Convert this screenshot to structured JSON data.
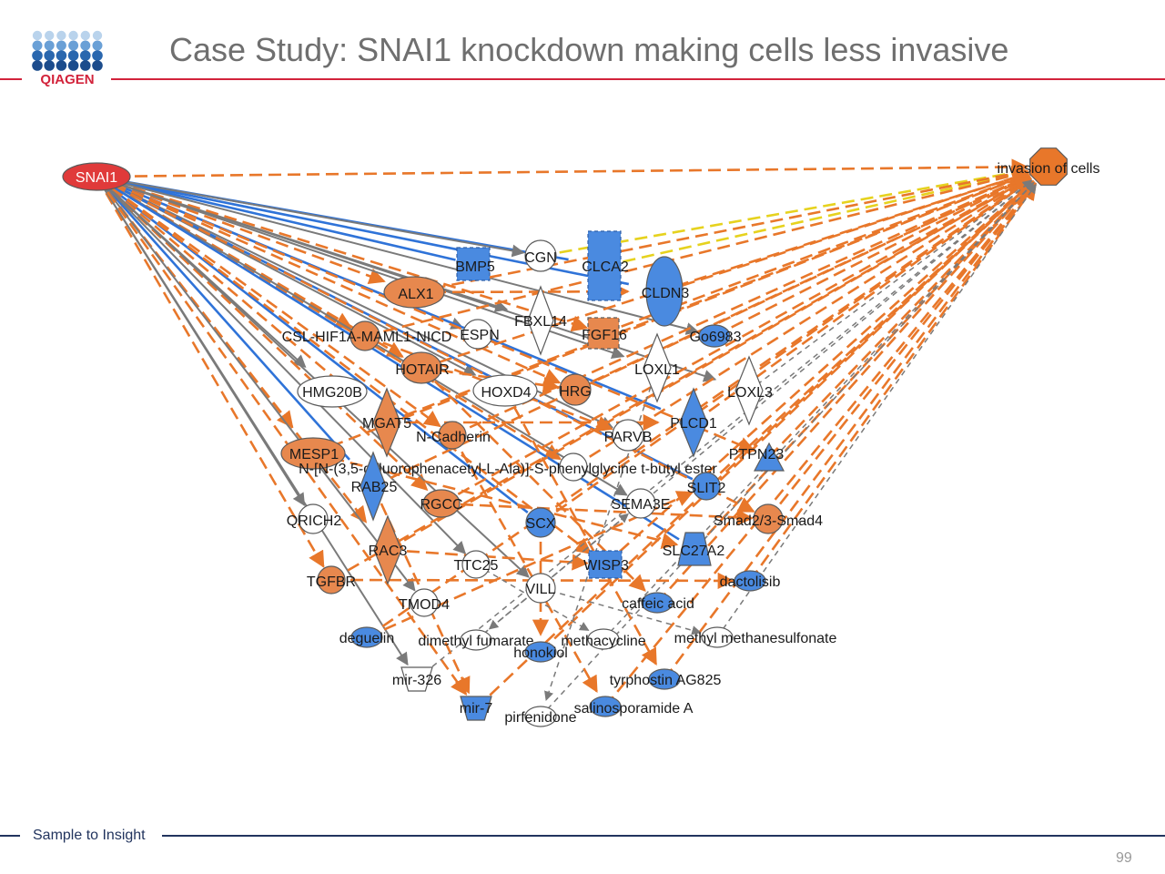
{
  "header": {
    "logo_text": "QIAGEN",
    "title": "Case Study: SNAI1 knockdown making cells less invasive"
  },
  "footer": {
    "tagline": "Sample to Insight",
    "page_number": "99"
  },
  "colors": {
    "brand_red": "#d2233b",
    "brand_navy": "#22345e",
    "activated_node": "#e7884e",
    "inhibited_node": "#4a8ae0",
    "predicted_activation_edge": "#e8772a",
    "predicted_inhibition_edge": "#2f73d8",
    "unknown_edge": "#7a7a7a",
    "inconsistent_edge": "#e6d21e",
    "source_node": "#e03a3a"
  },
  "network": {
    "source": "SNAI1",
    "target": "invasion of cells",
    "nodes": [
      {
        "id": "SNAI1",
        "label": "SNAI1"
      },
      {
        "id": "INV",
        "label": "invasion of cells"
      },
      {
        "id": "BMP5",
        "label": "BMP5"
      },
      {
        "id": "CGN",
        "label": "CGN"
      },
      {
        "id": "CLCA2",
        "label": "CLCA2"
      },
      {
        "id": "ALX1",
        "label": "ALX1"
      },
      {
        "id": "CLDN3",
        "label": "CLDN3"
      },
      {
        "id": "FBXL14",
        "label": "FBXL14"
      },
      {
        "id": "FGF16",
        "label": "FGF16"
      },
      {
        "id": "CSL",
        "label": "CSL-HIF1A-MAML1-NICD"
      },
      {
        "id": "ESPN",
        "label": "ESPN"
      },
      {
        "id": "Go6983",
        "label": "Go6983"
      },
      {
        "id": "HOTAIR",
        "label": "HOTAIR"
      },
      {
        "id": "LOXL1",
        "label": "LOXL1"
      },
      {
        "id": "HMG20B",
        "label": "HMG20B"
      },
      {
        "id": "HOXD4",
        "label": "HOXD4"
      },
      {
        "id": "HRG",
        "label": "HRG"
      },
      {
        "id": "LOXL3",
        "label": "LOXL3"
      },
      {
        "id": "MGAT5",
        "label": "MGAT5"
      },
      {
        "id": "NCAD",
        "label": "N-Cadherin"
      },
      {
        "id": "PARVB",
        "label": "PARVB"
      },
      {
        "id": "PLCD1",
        "label": "PLCD1"
      },
      {
        "id": "MESP1",
        "label": "MESP1"
      },
      {
        "id": "PTPN23",
        "label": "PTPN23"
      },
      {
        "id": "DAPT",
        "label": "N-[N-(3,5-difluorophenacetyl-L-Ala)]-S-phenylglycine t-butyl ester"
      },
      {
        "id": "RAB25",
        "label": "RAB25"
      },
      {
        "id": "SLIT2",
        "label": "SLIT2"
      },
      {
        "id": "RGCC",
        "label": "RGCC"
      },
      {
        "id": "SEMA3E",
        "label": "SEMA3E"
      },
      {
        "id": "QRICH2",
        "label": "QRICH2"
      },
      {
        "id": "SCX",
        "label": "SCX"
      },
      {
        "id": "SMAD",
        "label": "Smad2/3-Smad4"
      },
      {
        "id": "RAC3",
        "label": "RAC3"
      },
      {
        "id": "SLC27A2",
        "label": "SLC27A2"
      },
      {
        "id": "TTC25",
        "label": "TTC25"
      },
      {
        "id": "WISP3",
        "label": "WISP3"
      },
      {
        "id": "TGFBR",
        "label": "TGFBR"
      },
      {
        "id": "VILL",
        "label": "VILL"
      },
      {
        "id": "dactolisib",
        "label": "dactolisib"
      },
      {
        "id": "TMOD4",
        "label": "TMOD4"
      },
      {
        "id": "caffeic",
        "label": "caffeic acid"
      },
      {
        "id": "deguelin",
        "label": "deguelin"
      },
      {
        "id": "dmf",
        "label": "dimethyl fumarate"
      },
      {
        "id": "methacycline",
        "label": "methacycline"
      },
      {
        "id": "mms",
        "label": "methyl methanesulfonate"
      },
      {
        "id": "honokiol",
        "label": "honokiol"
      },
      {
        "id": "mir326",
        "label": "mir-326"
      },
      {
        "id": "tyrphostin",
        "label": "tyrphostin AG825"
      },
      {
        "id": "mir7",
        "label": "mir-7"
      },
      {
        "id": "salino",
        "label": "salinosporamide A"
      },
      {
        "id": "pirfenidone",
        "label": "pirfenidone"
      }
    ],
    "edges": [
      [
        "SNAI1",
        "INV",
        "orange-dash"
      ],
      [
        "SNAI1",
        "CLCA2",
        "blue"
      ],
      [
        "SNAI1",
        "CLDN3",
        "blue"
      ],
      [
        "SNAI1",
        "BMP5",
        "blue"
      ],
      [
        "SNAI1",
        "CGN",
        "gray"
      ],
      [
        "SNAI1",
        "ALX1",
        "orange-dash"
      ],
      [
        "SNAI1",
        "FBXL14",
        "gray"
      ],
      [
        "SNAI1",
        "FGF16",
        "orange-dash"
      ],
      [
        "SNAI1",
        "CSL",
        "orange-dash"
      ],
      [
        "SNAI1",
        "ESPN",
        "gray"
      ],
      [
        "SNAI1",
        "Go6983",
        "gray"
      ],
      [
        "SNAI1",
        "HOTAIR",
        "orange-dash"
      ],
      [
        "SNAI1",
        "LOXL1",
        "gray"
      ],
      [
        "SNAI1",
        "HMG20B",
        "gray"
      ],
      [
        "SNAI1",
        "HOXD4",
        "gray"
      ],
      [
        "SNAI1",
        "HRG",
        "orange-dash"
      ],
      [
        "SNAI1",
        "LOXL3",
        "gray"
      ],
      [
        "SNAI1",
        "MGAT5",
        "orange-dash"
      ],
      [
        "SNAI1",
        "NCAD",
        "orange-dash"
      ],
      [
        "SNAI1",
        "PARVB",
        "gray"
      ],
      [
        "SNAI1",
        "PLCD1",
        "blue"
      ],
      [
        "SNAI1",
        "MESP1",
        "orange-dash"
      ],
      [
        "SNAI1",
        "PTPN23",
        "orange-dash"
      ],
      [
        "SNAI1",
        "DAPT",
        "orange-dash"
      ],
      [
        "SNAI1",
        "RAB25",
        "blue"
      ],
      [
        "SNAI1",
        "SLIT2",
        "blue"
      ],
      [
        "SNAI1",
        "RGCC",
        "orange-dash"
      ],
      [
        "SNAI1",
        "SEMA3E",
        "gray"
      ],
      [
        "SNAI1",
        "QRICH2",
        "gray"
      ],
      [
        "SNAI1",
        "SCX",
        "blue"
      ],
      [
        "SNAI1",
        "SMAD",
        "orange-dash"
      ],
      [
        "SNAI1",
        "RAC3",
        "orange-dash"
      ],
      [
        "SNAI1",
        "SLC27A2",
        "blue"
      ],
      [
        "SNAI1",
        "TTC25",
        "gray"
      ],
      [
        "SNAI1",
        "WISP3",
        "orange-dash"
      ],
      [
        "SNAI1",
        "TGFBR",
        "orange-dash"
      ],
      [
        "SNAI1",
        "VILL",
        "gray"
      ],
      [
        "SNAI1",
        "TMOD4",
        "gray"
      ],
      [
        "SNAI1",
        "mir326",
        "gray"
      ],
      [
        "SNAI1",
        "mir7",
        "orange-dash"
      ],
      [
        "CGN",
        "INV",
        "yellow-dash"
      ],
      [
        "CLCA2",
        "INV",
        "yellow-dash"
      ],
      [
        "ALX1",
        "INV",
        "orange-dash"
      ],
      [
        "CLDN3",
        "INV",
        "orange-dash"
      ],
      [
        "FGF16",
        "INV",
        "orange-dash"
      ],
      [
        "CSL",
        "INV",
        "orange-dash"
      ],
      [
        "Go6983",
        "INV",
        "orange-dash"
      ],
      [
        "HOTAIR",
        "INV",
        "orange-dash"
      ],
      [
        "HRG",
        "INV",
        "orange-dash"
      ],
      [
        "LOXL3",
        "INV",
        "gray-dash"
      ],
      [
        "MGAT5",
        "INV",
        "orange-dash"
      ],
      [
        "NCAD",
        "INV",
        "orange-dash"
      ],
      [
        "PLCD1",
        "INV",
        "orange-dash"
      ],
      [
        "MESP1",
        "INV",
        "orange-dash"
      ],
      [
        "PTPN23",
        "INV",
        "orange-dash"
      ],
      [
        "DAPT",
        "INV",
        "orange-dash"
      ],
      [
        "RAB25",
        "INV",
        "orange-dash"
      ],
      [
        "SLIT2",
        "INV",
        "orange-dash"
      ],
      [
        "RGCC",
        "INV",
        "orange-dash"
      ],
      [
        "SCX",
        "INV",
        "orange-dash"
      ],
      [
        "SMAD",
        "INV",
        "orange-dash"
      ],
      [
        "RAC3",
        "INV",
        "orange-dash"
      ],
      [
        "SLC27A2",
        "INV",
        "orange-dash"
      ],
      [
        "WISP3",
        "INV",
        "orange-dash"
      ],
      [
        "TGFBR",
        "INV",
        "orange-dash"
      ],
      [
        "dactolisib",
        "INV",
        "orange-dash"
      ],
      [
        "caffeic",
        "INV",
        "orange-dash"
      ],
      [
        "deguelin",
        "INV",
        "orange-dash"
      ],
      [
        "honokiol",
        "INV",
        "orange-dash"
      ],
      [
        "tyrphostin",
        "INV",
        "orange-dash"
      ],
      [
        "salino",
        "INV",
        "orange-dash"
      ],
      [
        "mir7",
        "INV",
        "orange-dash"
      ],
      [
        "mms",
        "INV",
        "gray-dash"
      ],
      [
        "methacycline",
        "INV",
        "gray-dash"
      ],
      [
        "dmf",
        "INV",
        "gray-dash"
      ],
      [
        "pirfenidone",
        "INV",
        "gray-dash"
      ],
      [
        "mir326",
        "INV",
        "gray-dash"
      ],
      [
        "ALX1",
        "CLDN3",
        "orange-dash"
      ],
      [
        "HOTAIR",
        "HRG",
        "orange-dash"
      ],
      [
        "MGAT5",
        "PLCD1",
        "orange-dash"
      ],
      [
        "RGCC",
        "SMAD",
        "orange-dash"
      ],
      [
        "RAC3",
        "WISP3",
        "orange-dash"
      ],
      [
        "TGFBR",
        "dactolisib",
        "orange-dash"
      ],
      [
        "MESP1",
        "SLC27A2",
        "orange-dash"
      ],
      [
        "CSL",
        "PARVB",
        "orange-dash"
      ],
      [
        "HOTAIR",
        "caffeic",
        "orange-dash"
      ],
      [
        "HOXD4",
        "tyrphostin",
        "orange-dash"
      ],
      [
        "NCAD",
        "salino",
        "orange-dash"
      ],
      [
        "SCX",
        "honokiol",
        "orange-dash"
      ],
      [
        "RAB25",
        "mir7",
        "orange-dash"
      ],
      [
        "TTC25",
        "methacycline",
        "gray-dash"
      ],
      [
        "VILL",
        "mms",
        "gray-dash"
      ],
      [
        "SEMA3E",
        "dmf",
        "gray-dash"
      ],
      [
        "LOXL1",
        "pirfenidone",
        "gray-dash"
      ],
      [
        "deguelin",
        "SLIT2",
        "orange-dash"
      ],
      [
        "dmf",
        "SEMA3E",
        "gray-dash"
      ]
    ]
  }
}
